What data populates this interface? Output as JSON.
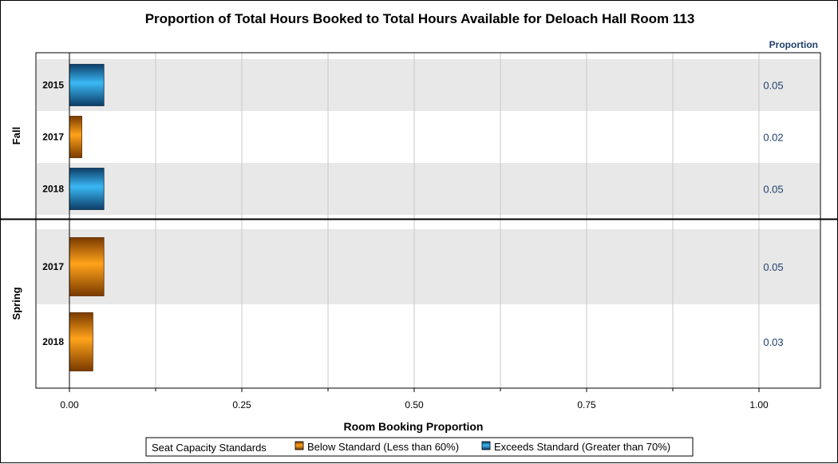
{
  "chart_data": {
    "type": "bar",
    "orientation": "horizontal",
    "title": "Proportion of Total Hours Booked to Total Hours Available for Deloach Hall Room 113",
    "xlabel": "Room Booking Proportion",
    "value_column_header": "Proportion",
    "xlim": [
      0,
      1.14
    ],
    "xticks": [
      {
        "value": 0,
        "label": "0.00"
      },
      {
        "value": 0.25,
        "label": "0.25"
      },
      {
        "value": 0.5,
        "label": "0.50"
      },
      {
        "value": 0.75,
        "label": "0.75"
      },
      {
        "value": 1.0,
        "label": "1.00"
      }
    ],
    "minor_ticks": [
      0.125,
      0.375,
      0.625,
      0.875
    ],
    "grid": true,
    "groups": [
      {
        "name": "Fall",
        "bars": [
          {
            "category": "2015",
            "value": 0.05,
            "value_label": "0.05",
            "standard": "exceeds"
          },
          {
            "category": "2017",
            "value": 0.018,
            "value_label": "0.02",
            "standard": "below"
          },
          {
            "category": "2018",
            "value": 0.05,
            "value_label": "0.05",
            "standard": "exceeds"
          }
        ]
      },
      {
        "name": "Spring",
        "bars": [
          {
            "category": "2017",
            "value": 0.05,
            "value_label": "0.05",
            "standard": "below"
          },
          {
            "category": "2018",
            "value": 0.034,
            "value_label": "0.03",
            "standard": "below"
          }
        ]
      }
    ],
    "legend": {
      "title": "Seat Capacity Standards",
      "placement": "bottom",
      "items": [
        {
          "key": "below",
          "label": "Below Standard (Less than 60%)",
          "color": "#f08c00"
        },
        {
          "key": "exceeds",
          "label": "Exceeds Standard (Greater than 70%)",
          "color": "#29a3e0"
        }
      ]
    },
    "colors": {
      "below_light": "#ffa31a",
      "below_dark": "#7a3a00",
      "exceeds_light": "#3ab8f5",
      "exceeds_dark": "#0d3d66",
      "band": "#e8e8e8",
      "grid": "#c8c8c8",
      "value_text": "#1f3f6f"
    }
  }
}
